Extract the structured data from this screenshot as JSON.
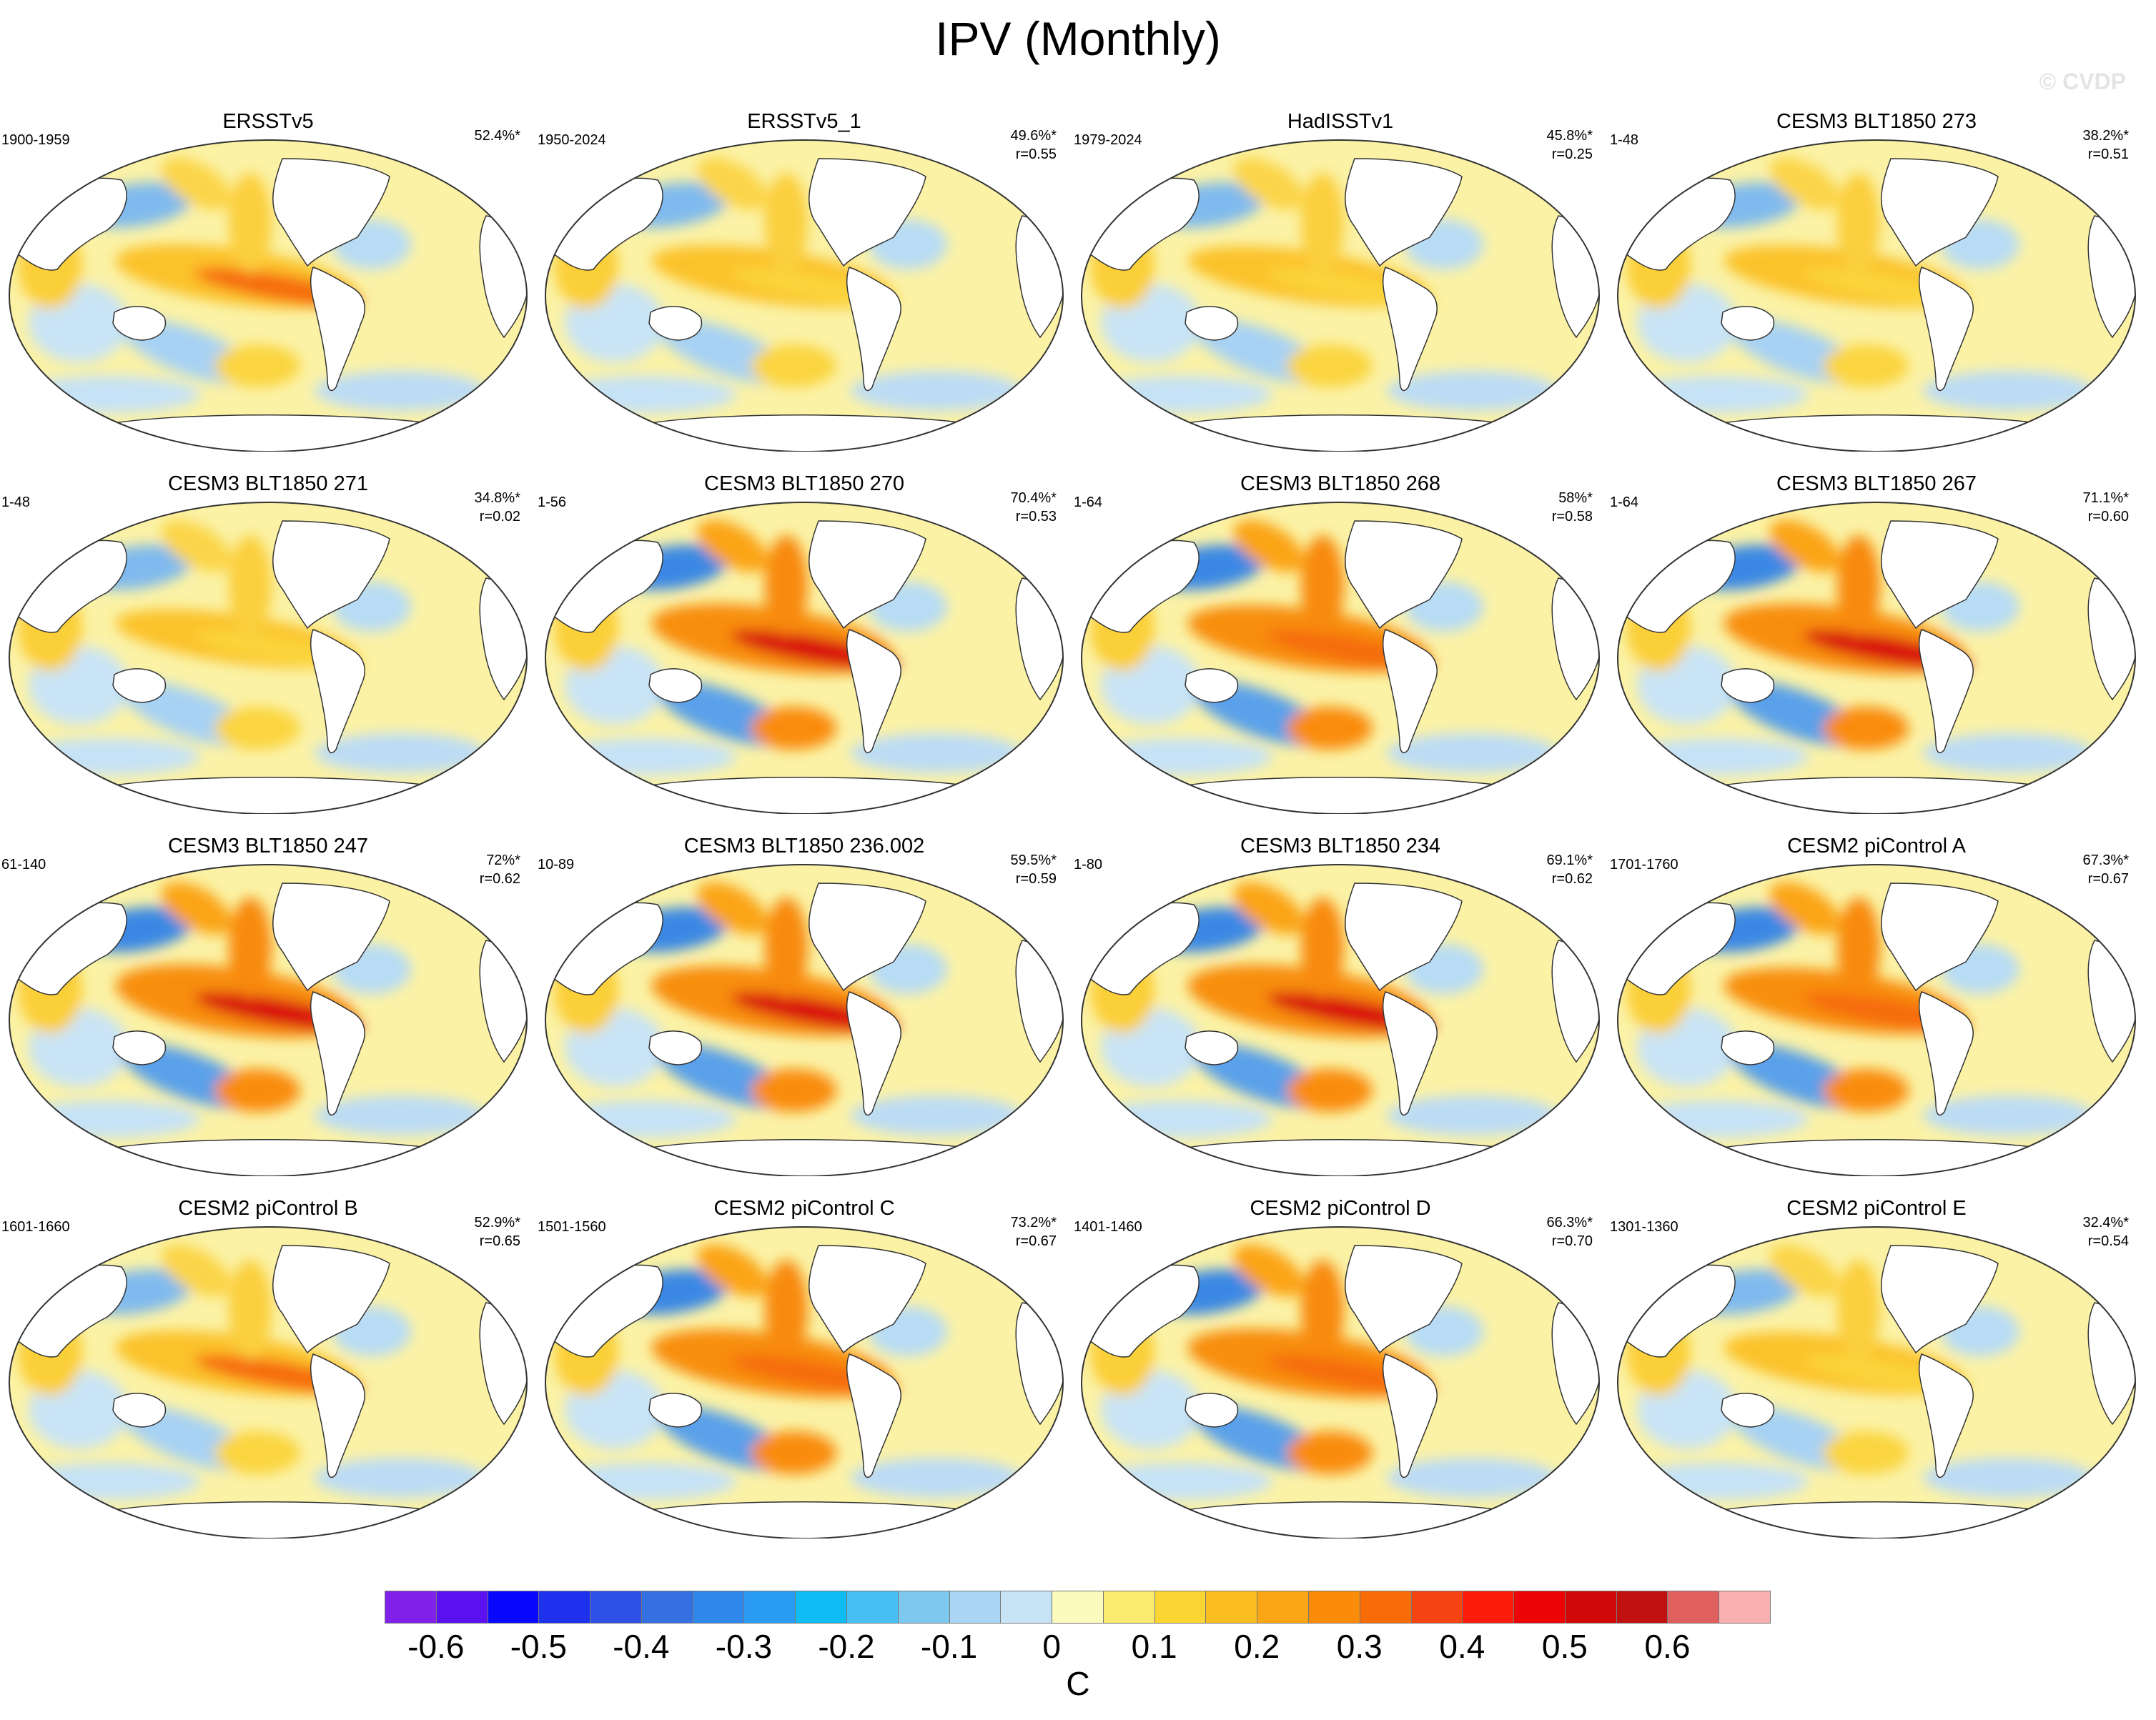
{
  "title": "IPV (Monthly)",
  "watermark": "© CVDP",
  "panels": [
    {
      "title": "ERSSTv5",
      "period": "1900-1959",
      "pct": "52.4%*",
      "corr": "",
      "strength": 0.55
    },
    {
      "title": "ERSSTv5_1",
      "period": "1950-2024",
      "pct": "49.6%*",
      "corr": "r=0.55",
      "strength": 0.45
    },
    {
      "title": "HadISSTv1",
      "period": "1979-2024",
      "pct": "45.8%*",
      "corr": "r=0.25",
      "strength": 0.35
    },
    {
      "title": "CESM3 BLT1850 273",
      "period": "1-48",
      "pct": "38.2%*",
      "corr": "r=0.51",
      "strength": 0.45
    },
    {
      "title": "CESM3 BLT1850 271",
      "period": "1-48",
      "pct": "34.8%*",
      "corr": "r=0.02",
      "strength": 0.25
    },
    {
      "title": "CESM3 BLT1850 270",
      "period": "1-56",
      "pct": "70.4%*",
      "corr": "r=0.53",
      "strength": 0.85
    },
    {
      "title": "CESM3 BLT1850 268",
      "period": "1-64",
      "pct": "58%*",
      "corr": "r=0.58",
      "strength": 0.7
    },
    {
      "title": "CESM3 BLT1850 267",
      "period": "1-64",
      "pct": "71.1%*",
      "corr": "r=0.60",
      "strength": 0.85
    },
    {
      "title": "CESM3 BLT1850 247",
      "period": "61-140",
      "pct": "72%*",
      "corr": "r=0.62",
      "strength": 1.0
    },
    {
      "title": "CESM3 BLT1850 236.002",
      "period": "10-89",
      "pct": "59.5%*",
      "corr": "r=0.59",
      "strength": 0.85
    },
    {
      "title": "CESM3 BLT1850 234",
      "period": "1-80",
      "pct": "69.1%*",
      "corr": "r=0.62",
      "strength": 1.0
    },
    {
      "title": "CESM2 piControl A",
      "period": "1701-1760",
      "pct": "67.3%*",
      "corr": "r=0.67",
      "strength": 0.65
    },
    {
      "title": "CESM2 piControl B",
      "period": "1601-1660",
      "pct": "52.9%*",
      "corr": "r=0.65",
      "strength": 0.6
    },
    {
      "title": "CESM2 piControl C",
      "period": "1501-1560",
      "pct": "73.2%*",
      "corr": "r=0.67",
      "strength": 0.75
    },
    {
      "title": "CESM2 piControl D",
      "period": "1401-1460",
      "pct": "66.3%*",
      "corr": "r=0.70",
      "strength": 0.8
    },
    {
      "title": "CESM2 piControl E",
      "period": "1301-1360",
      "pct": "32.4%*",
      "corr": "r=0.54",
      "strength": 0.45
    }
  ],
  "colorbar": {
    "colors": [
      "#8020e8",
      "#5a10ef",
      "#0808ff",
      "#1e32ee",
      "#2e50e6",
      "#3470e0",
      "#2e88ec",
      "#2a9cf4",
      "#10bcf4",
      "#46c0f4",
      "#7cc8ee",
      "#a8d6f4",
      "#c6e4f6",
      "#fbfbbe",
      "#faea6e",
      "#fbd632",
      "#fbbe20",
      "#fba614",
      "#fb8c0a",
      "#f86c08",
      "#f44412",
      "#fb1c0a",
      "#ec0404",
      "#d00808",
      "#c01010",
      "#e06060",
      "#f8b0b0"
    ],
    "labels": [
      "-0.6",
      "-0.5",
      "-0.4",
      "-0.3",
      "-0.2",
      "-0.1",
      "0",
      "0.1",
      "0.2",
      "0.3",
      "0.4",
      "0.5",
      "0.6"
    ],
    "unit": "C"
  }
}
